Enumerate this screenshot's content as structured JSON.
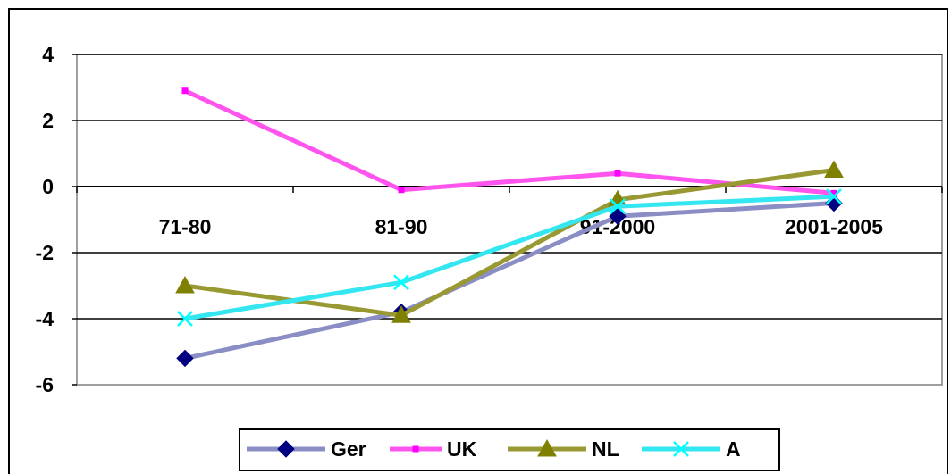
{
  "chart_data": {
    "type": "line",
    "title": "",
    "xlabel": "",
    "ylabel": "",
    "categories": [
      "71-80",
      "81-90",
      "91-2000",
      "2001-2005"
    ],
    "ylim": [
      -6,
      4
    ],
    "yticks": [
      "4",
      "2",
      "0",
      "-2",
      "-4",
      "-6"
    ],
    "ytick_values": [
      4,
      2,
      0,
      -2,
      -4,
      -6
    ],
    "grid": "horizontal",
    "legend_position": "bottom",
    "series": [
      {
        "name": "Ger",
        "values": [
          -5.2,
          -3.8,
          -0.9,
          -0.5
        ],
        "color": "#000080",
        "line_color": "#8a8ec4",
        "marker": "diamond"
      },
      {
        "name": "UK",
        "values": [
          2.9,
          -0.1,
          0.4,
          -0.2
        ],
        "color": "#ff00ff",
        "line_color": "#ff55ee",
        "marker": "square"
      },
      {
        "name": "NL",
        "values": [
          -3.0,
          -3.9,
          -0.4,
          0.5
        ],
        "color": "#808000",
        "line_color": "#999933",
        "marker": "triangle"
      },
      {
        "name": "A",
        "values": [
          -4.0,
          -2.9,
          -0.6,
          -0.3
        ],
        "color": "#00ffff",
        "line_color": "#33e6f0",
        "marker": "x"
      }
    ]
  }
}
